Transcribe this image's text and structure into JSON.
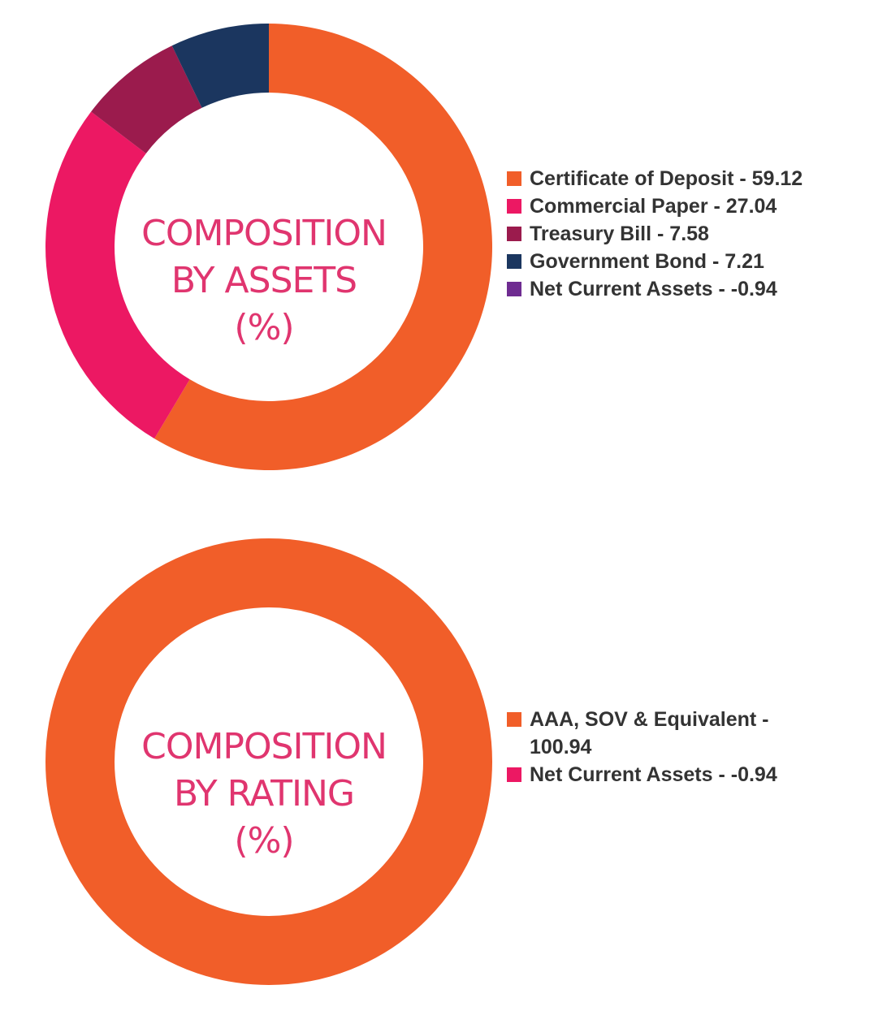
{
  "chart_data": [
    {
      "type": "pie",
      "variant": "donut",
      "center_label": [
        "COMPOSITION",
        "BY ASSETS",
        "(%)"
      ],
      "categories": [
        "Certificate of Deposit",
        "Commercial Paper",
        "Treasury Bill",
        "Government Bond",
        "Net Current Assets"
      ],
      "values": [
        59.12,
        27.04,
        7.58,
        7.21,
        -0.94
      ],
      "colors": [
        "#f15e29",
        "#ec1863",
        "#9b1b4d",
        "#1b365f",
        "#6f2c91"
      ],
      "legend_labels": [
        "Certificate of Deposit - 59.12",
        "Commercial Paper - 27.04",
        "Treasury Bill - 7.58",
        "Government Bond - 7.21",
        "Net Current Assets - -0.94"
      ],
      "legend_position": "right"
    },
    {
      "type": "pie",
      "variant": "donut",
      "center_label": [
        "COMPOSITION",
        "BY RATING",
        "(%)"
      ],
      "categories": [
        "AAA, SOV & Equivalent",
        "Net Current Assets"
      ],
      "values": [
        100.94,
        -0.94
      ],
      "colors": [
        "#f15e29",
        "#ec1863"
      ],
      "legend_labels": [
        "AAA, SOV & Equivalent - 100.94",
        "Net Current Assets - -0.94"
      ],
      "legend_position": "right"
    }
  ]
}
